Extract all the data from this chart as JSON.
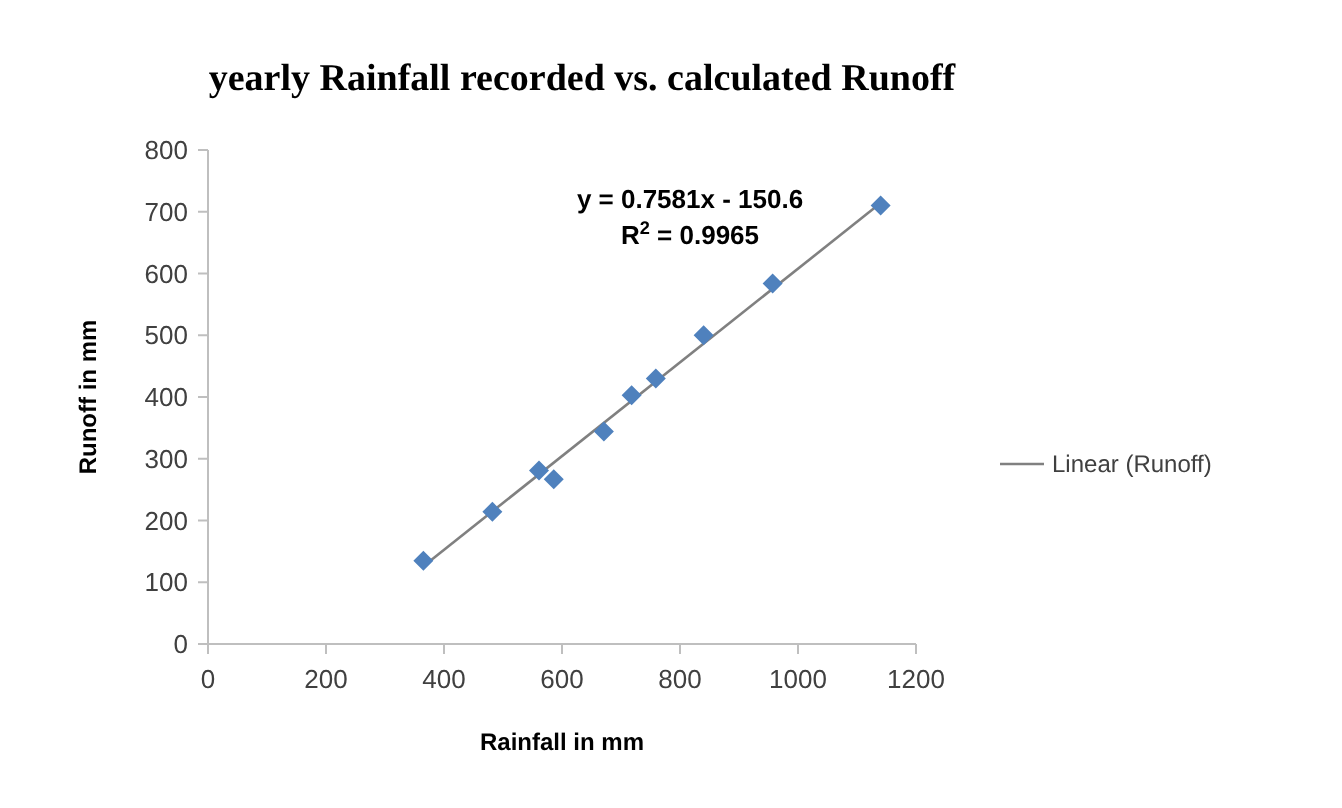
{
  "chart_data": {
    "type": "scatter",
    "title": "yearly Rainfall recorded vs. calculated Runoff",
    "xlabel": "Rainfall in mm",
    "ylabel": "Runoff in mm",
    "xlim": [
      0,
      1200
    ],
    "xticks": [
      0,
      200,
      400,
      600,
      800,
      1000,
      1200
    ],
    "ylim": [
      0,
      800
    ],
    "yticks": [
      0,
      100,
      200,
      300,
      400,
      500,
      600,
      700,
      800
    ],
    "series": [
      {
        "color": "#4f81bd",
        "marker": "diamond",
        "x": [
          365,
          482,
          561,
          586,
          671,
          718,
          759,
          840,
          957,
          1140
        ],
        "values": [
          135,
          214,
          281,
          267,
          344,
          403,
          430,
          500,
          584,
          710
        ]
      },
      {
        "type": "line",
        "name": "Linear (Runoff)",
        "color": "#808080",
        "marker": "none",
        "x": [
          365,
          1140
        ],
        "values": [
          126,
          714
        ]
      }
    ],
    "annotations": [
      "y = 0.7581x - 150.6",
      "R$^{2}$ = 0.9965"
    ],
    "grid": false,
    "legend": "right"
  }
}
